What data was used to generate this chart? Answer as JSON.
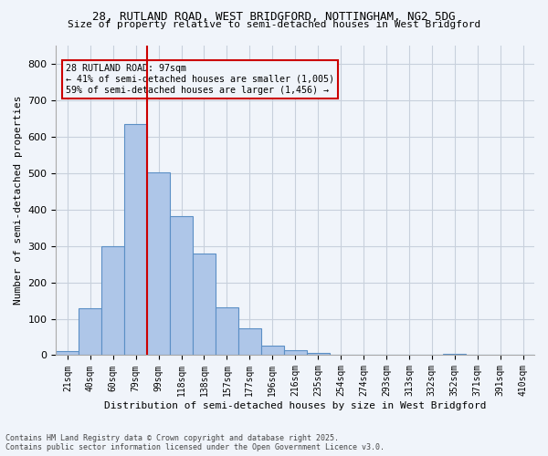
{
  "title1": "28, RUTLAND ROAD, WEST BRIDGFORD, NOTTINGHAM, NG2 5DG",
  "title2": "Size of property relative to semi-detached houses in West Bridgford",
  "xlabel": "Distribution of semi-detached houses by size in West Bridgford",
  "ylabel": "Number of semi-detached properties",
  "bin_labels": [
    "21sqm",
    "40sqm",
    "60sqm",
    "79sqm",
    "99sqm",
    "118sqm",
    "138sqm",
    "157sqm",
    "177sqm",
    "196sqm",
    "216sqm",
    "235sqm",
    "254sqm",
    "274sqm",
    "293sqm",
    "313sqm",
    "332sqm",
    "352sqm",
    "371sqm",
    "391sqm",
    "410sqm"
  ],
  "bar_heights": [
    10,
    128,
    300,
    635,
    503,
    383,
    278,
    132,
    73,
    25,
    13,
    5,
    0,
    0,
    0,
    0,
    0,
    4,
    0,
    0,
    0
  ],
  "bar_color": "#aec6e8",
  "bar_edge_color": "#5b8fc5",
  "property_value": 97,
  "vline_x_bin": 4,
  "annotation_title": "28 RUTLAND ROAD: 97sqm",
  "annotation_line1": "← 41% of semi-detached houses are smaller (1,005)",
  "annotation_line2": "59% of semi-detached houses are larger (1,456) →",
  "vline_color": "#cc0000",
  "annotation_box_color": "#cc0000",
  "ylim": [
    0,
    850
  ],
  "yticks": [
    0,
    100,
    200,
    300,
    400,
    500,
    600,
    700,
    800
  ],
  "footer1": "Contains HM Land Registry data © Crown copyright and database right 2025.",
  "footer2": "Contains public sector information licensed under the Open Government Licence v3.0.",
  "bg_color": "#f0f4fa",
  "grid_color": "#c8d0dc"
}
